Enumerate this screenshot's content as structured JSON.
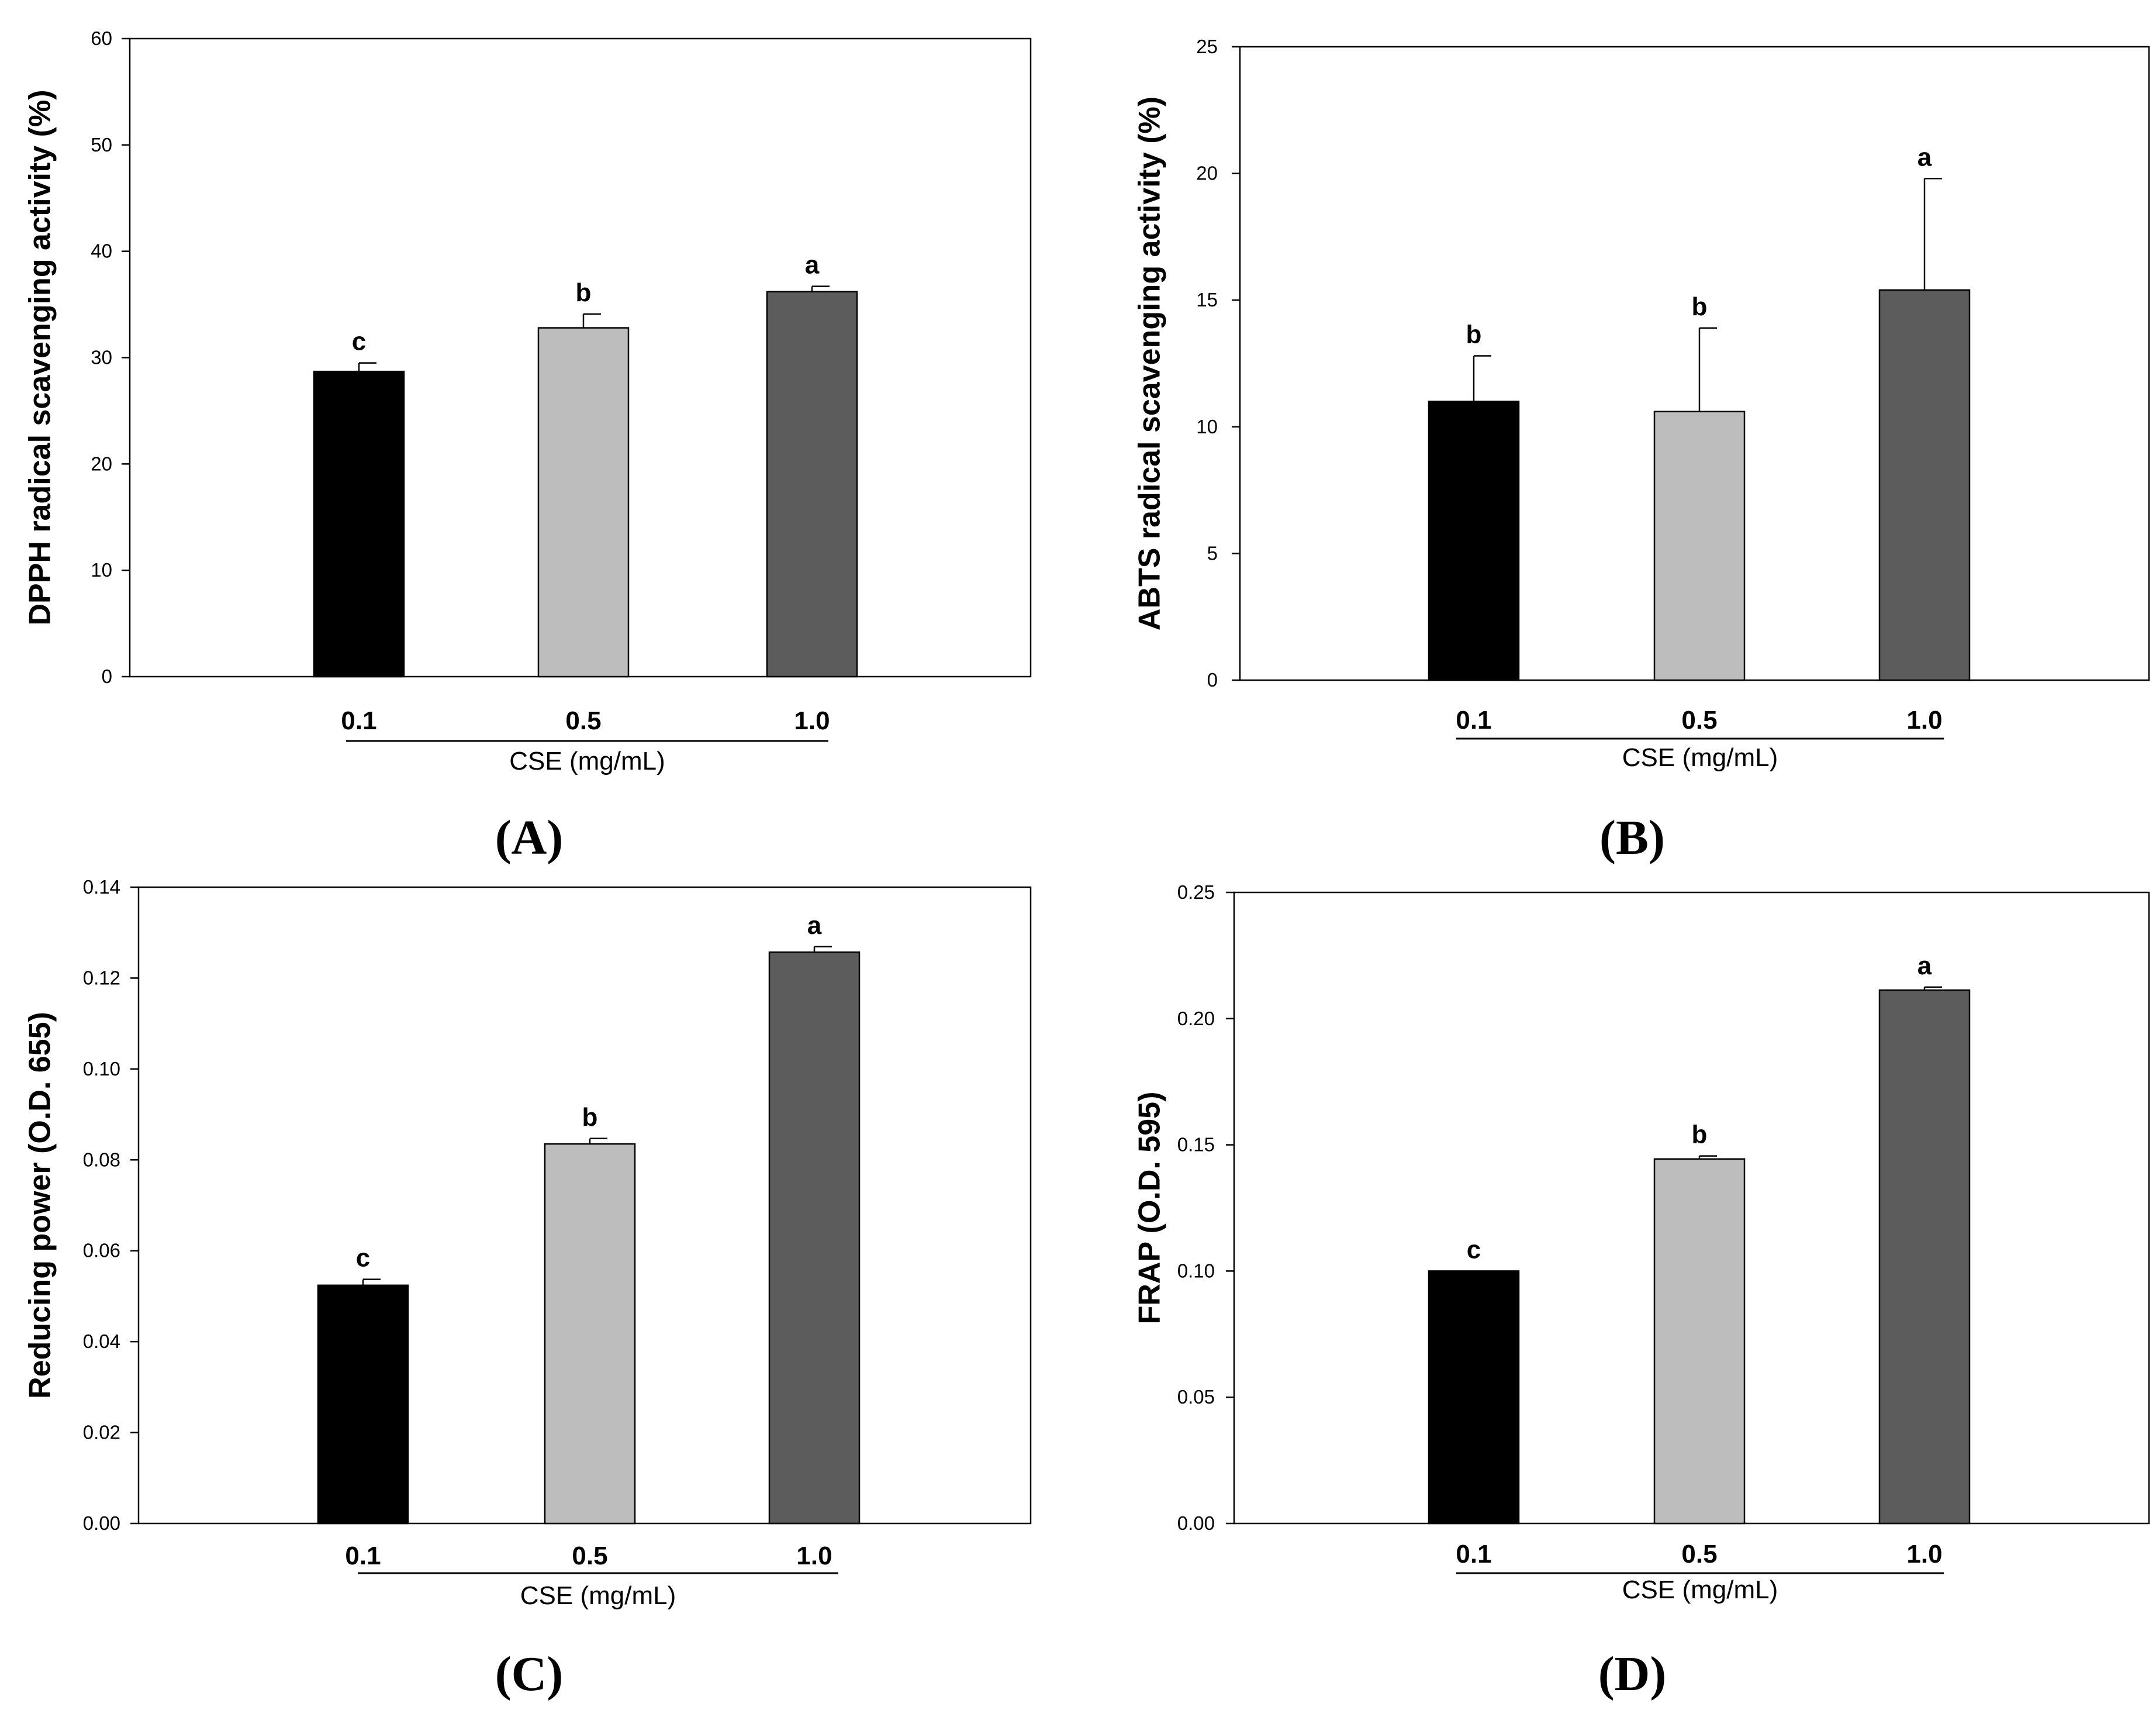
{
  "chart_data": [
    {
      "type": "bar",
      "panel_label": "(A)",
      "ylabel": "DPPH radical scavenging activity (%)",
      "xlabel": "CSE (mg/mL)",
      "categories": [
        "0.1",
        "0.5",
        "1.0"
      ],
      "values": [
        28.7,
        32.8,
        36.2
      ],
      "errors": [
        0.8,
        1.3,
        0.5
      ],
      "significance": [
        "c",
        "b",
        "a"
      ],
      "colors": [
        "#000000",
        "#bdbdbd",
        "#5c5c5c"
      ],
      "ylim": [
        0,
        60
      ],
      "yticks": [
        0,
        10,
        20,
        30,
        40,
        50,
        60
      ],
      "ytick_labels": [
        "0",
        "10",
        "20",
        "30",
        "40",
        "50",
        "60"
      ]
    },
    {
      "type": "bar",
      "panel_label": "(B)",
      "ylabel": "ABTS radical scavenging activity (%)",
      "xlabel": "CSE (mg/mL)",
      "categories": [
        "0.1",
        "0.5",
        "1.0"
      ],
      "values": [
        11.0,
        10.6,
        15.4
      ],
      "errors": [
        1.8,
        3.3,
        4.4
      ],
      "significance": [
        "b",
        "b",
        "a"
      ],
      "colors": [
        "#000000",
        "#bdbdbd",
        "#5c5c5c"
      ],
      "ylim": [
        0,
        25
      ],
      "yticks": [
        0,
        5,
        10,
        15,
        20,
        25
      ],
      "ytick_labels": [
        "0",
        "5",
        "10",
        "15",
        "20",
        "25"
      ]
    },
    {
      "type": "bar",
      "panel_label": "(C)",
      "ylabel": "Reducing power (O.D. 655)",
      "xlabel": "CSE (mg/mL)",
      "categories": [
        "0.1",
        "0.5",
        "1.0"
      ],
      "values": [
        0.0524,
        0.0835,
        0.1257
      ],
      "errors": [
        0.0013,
        0.0012,
        0.0012
      ],
      "significance": [
        "c",
        "b",
        "a"
      ],
      "colors": [
        "#000000",
        "#bdbdbd",
        "#5c5c5c"
      ],
      "ylim": [
        0,
        0.14
      ],
      "yticks": [
        0,
        0.02,
        0.04,
        0.06,
        0.08,
        0.1,
        0.12,
        0.14
      ],
      "ytick_labels": [
        "0.00",
        "0.02",
        "0.04",
        "0.06",
        "0.08",
        "0.10",
        "0.12",
        "0.14"
      ]
    },
    {
      "type": "bar",
      "panel_label": "(D)",
      "ylabel": "FRAP (O.D. 595)",
      "xlabel": "CSE (mg/mL)",
      "categories": [
        "0.1",
        "0.5",
        "1.0"
      ],
      "values": [
        0.1,
        0.1444,
        0.2113
      ],
      "errors": [
        0.0,
        0.0012,
        0.0012
      ],
      "significance": [
        "c",
        "b",
        "a"
      ],
      "colors": [
        "#000000",
        "#bdbdbd",
        "#5c5c5c"
      ],
      "ylim": [
        0,
        0.25
      ],
      "yticks": [
        0,
        0.05,
        0.1,
        0.15,
        0.2,
        0.25
      ],
      "ytick_labels": [
        "0.00",
        "0.05",
        "0.10",
        "0.15",
        "0.20",
        "0.25"
      ]
    }
  ]
}
